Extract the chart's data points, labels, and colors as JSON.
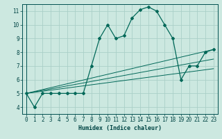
{
  "xlabel": "Humidex (Indice chaleur)",
  "ylabel": "",
  "bg_color": "#cce8e0",
  "grid_color": "#aacfc8",
  "line_color": "#006858",
  "xlim": [
    -0.5,
    23.5
  ],
  "ylim": [
    3.5,
    11.5
  ],
  "xticks": [
    0,
    1,
    2,
    3,
    4,
    5,
    6,
    7,
    8,
    9,
    10,
    11,
    12,
    13,
    14,
    15,
    16,
    17,
    18,
    19,
    20,
    21,
    22,
    23
  ],
  "yticks": [
    4,
    5,
    6,
    7,
    8,
    9,
    10,
    11
  ],
  "curve1_x": [
    0,
    1,
    2,
    3,
    4,
    5,
    6,
    7,
    8,
    9,
    10,
    11,
    12,
    13,
    14,
    15,
    16,
    17,
    18,
    19,
    20,
    21,
    22,
    23
  ],
  "curve1_y": [
    5.0,
    4.0,
    5.0,
    5.0,
    5.0,
    5.0,
    5.0,
    5.0,
    7.0,
    9.0,
    10.0,
    9.0,
    9.2,
    10.5,
    11.1,
    11.3,
    11.0,
    10.0,
    9.0,
    6.0,
    7.0,
    7.0,
    8.0,
    8.2
  ],
  "line1_x": [
    0,
    23
  ],
  "line1_y": [
    5.0,
    8.2
  ],
  "line2_x": [
    0,
    23
  ],
  "line2_y": [
    5.0,
    6.8
  ],
  "line3_x": [
    0,
    23
  ],
  "line3_y": [
    5.0,
    7.5
  ]
}
